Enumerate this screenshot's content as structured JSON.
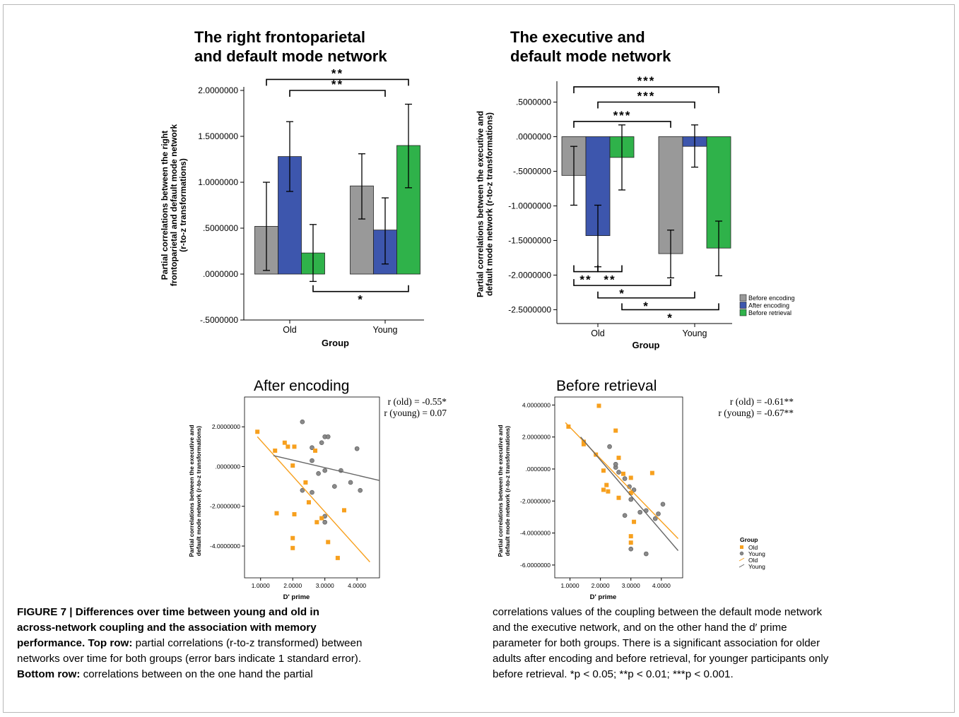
{
  "colors": {
    "before_encoding": "#999999",
    "after_encoding": "#3d56ad",
    "before_retrieval": "#2fb24a",
    "old": "#f7a01e",
    "young": "#8a8a8a",
    "old_line": "#f7a01e",
    "young_line": "#666666"
  },
  "chart_data": [
    {
      "id": "c1",
      "type": "bar",
      "title_lines": [
        "The right frontoparietal",
        "and default mode network"
      ],
      "xlabel": "Group",
      "ylabel_lines": [
        "Partial correlations between the right",
        "frontoparietal and default mode network",
        "(r-to-z transformations)"
      ],
      "categories": [
        "Old",
        "Young"
      ],
      "ylim": [
        -0.5,
        2.0
      ],
      "yticks": [
        -0.5,
        0.0,
        0.5,
        1.0,
        1.5,
        2.0
      ],
      "ytick_labels": [
        "-.5000000",
        ".0000000",
        ".5000000",
        "1.0000000",
        "1.5000000",
        "2.0000000"
      ],
      "series": [
        {
          "key": "before_encoding",
          "values": [
            0.52,
            0.96
          ],
          "err_low": [
            0.04,
            0.6
          ],
          "err_high": [
            1.0,
            1.31
          ]
        },
        {
          "key": "after_encoding",
          "values": [
            1.28,
            0.48
          ],
          "err_low": [
            0.9,
            0.11
          ],
          "err_high": [
            1.66,
            0.83
          ]
        },
        {
          "key": "before_retrieval",
          "values": [
            0.23,
            1.4
          ],
          "err_low": [
            -0.08,
            0.94
          ],
          "err_high": [
            0.54,
            1.85
          ]
        }
      ],
      "significance": [
        {
          "label": "**",
          "from": [
            "Old",
            0
          ],
          "to": [
            "Young",
            2
          ],
          "level": 2.12,
          "pos": "above"
        },
        {
          "label": "**",
          "from": [
            "Old",
            1
          ],
          "to": [
            "Young",
            1
          ],
          "level": 2.0,
          "pos": "above"
        },
        {
          "label": "*",
          "from": [
            "Old",
            2
          ],
          "to": [
            "Young",
            2
          ],
          "level": -0.19,
          "pos": "below"
        }
      ]
    },
    {
      "id": "c2",
      "type": "bar",
      "title_lines": [
        "The executive and",
        "default mode network"
      ],
      "xlabel": "Group",
      "ylabel_lines": [
        "Partial correlations between the executive and",
        "default mode network (r-to-z transformations)"
      ],
      "categories": [
        "Old",
        "Young"
      ],
      "ylim": [
        -2.7,
        0.75
      ],
      "yticks": [
        -2.5,
        -2.0,
        -1.5,
        -1.0,
        -0.5,
        0.0,
        0.5
      ],
      "ytick_labels": [
        "-2.5000000",
        "-2.0000000",
        "-1.5000000",
        "-1.0000000",
        "-.5000000",
        ".0000000",
        ".5000000"
      ],
      "legend": [
        "Before encoding",
        "After encoding",
        "Before retrieval"
      ],
      "legend_position": "right",
      "series": [
        {
          "key": "before_encoding",
          "values": [
            -0.56,
            -1.69
          ],
          "err_low": [
            -0.99,
            -2.04
          ],
          "err_high": [
            -0.14,
            -1.35
          ]
        },
        {
          "key": "after_encoding",
          "values": [
            -1.43,
            -0.14
          ],
          "err_low": [
            -1.88,
            -0.44
          ],
          "err_high": [
            -0.99,
            0.17
          ]
        },
        {
          "key": "before_retrieval",
          "values": [
            -0.3,
            -1.61
          ],
          "err_low": [
            -0.77,
            -2.01
          ],
          "err_high": [
            0.17,
            -1.22
          ]
        }
      ],
      "significance": [
        {
          "label": "***",
          "from": [
            "Old",
            0
          ],
          "to": [
            "Young",
            2
          ],
          "level": 0.72,
          "pos": "above"
        },
        {
          "label": "***",
          "from": [
            "Old",
            1
          ],
          "to": [
            "Young",
            1
          ],
          "level": 0.5,
          "pos": "above"
        },
        {
          "label": "***",
          "from": [
            "Old",
            0
          ],
          "to": [
            "Young",
            0
          ],
          "level": 0.22,
          "pos": "above"
        },
        {
          "label": "**",
          "from": [
            "Old",
            0
          ],
          "to": [
            "Old",
            1
          ],
          "level": -1.95,
          "pos": "below"
        },
        {
          "label": "**",
          "from": [
            "Old",
            1
          ],
          "to": [
            "Old",
            2
          ],
          "level": -1.95,
          "pos": "below"
        },
        {
          "label": "*",
          "from": [
            "Old",
            0
          ],
          "to": [
            "Young",
            0
          ],
          "level": -2.15,
          "pos": "below"
        },
        {
          "label": "*",
          "from": [
            "Old",
            1
          ],
          "to": [
            "Young",
            1
          ],
          "level": -2.33,
          "pos": "below"
        },
        {
          "label": "*",
          "from": [
            "Old",
            2
          ],
          "to": [
            "Young",
            2
          ],
          "level": -2.5,
          "pos": "below"
        }
      ]
    },
    {
      "id": "c3",
      "type": "scatter",
      "title": "After encoding",
      "xlabel": "D' prime",
      "ylabel_lines": [
        "Partial correlations between the executive and",
        "default mode network (r-to-z transformations)"
      ],
      "xlim": [
        0.5,
        4.7
      ],
      "ylim": [
        -5.6,
        3.5
      ],
      "xticks": [
        1.0,
        2.0,
        3.0,
        4.0
      ],
      "xtick_labels": [
        "1.0000",
        "2.0000",
        "3.0000",
        "4.0000"
      ],
      "yticks": [
        -4.0,
        -2.0,
        0.0,
        2.0
      ],
      "ytick_labels": [
        "-4.0000000",
        "-2.0000000",
        ".0000000",
        "2.0000000"
      ],
      "annotations": [
        "r (old) = -0.55*",
        "r (young) = 0.07"
      ],
      "old_points": [
        [
          0.9,
          1.75
        ],
        [
          1.45,
          0.8
        ],
        [
          1.75,
          1.2
        ],
        [
          1.85,
          1.0
        ],
        [
          2.05,
          1.0
        ],
        [
          2.7,
          0.8
        ],
        [
          2.0,
          0.05
        ],
        [
          2.4,
          -0.8
        ],
        [
          2.5,
          -1.8
        ],
        [
          2.75,
          -2.8
        ],
        [
          2.9,
          -2.6
        ],
        [
          3.4,
          -4.6
        ],
        [
          3.6,
          -2.2
        ],
        [
          1.5,
          -2.35
        ],
        [
          2.05,
          -2.4
        ],
        [
          2.0,
          -3.6
        ],
        [
          2.0,
          -4.1
        ],
        [
          3.1,
          -3.8
        ]
      ],
      "young_points": [
        [
          2.3,
          2.25
        ],
        [
          2.6,
          0.95
        ],
        [
          2.9,
          1.2
        ],
        [
          3.0,
          1.5
        ],
        [
          3.1,
          1.5
        ],
        [
          4.0,
          0.9
        ],
        [
          2.6,
          0.3
        ],
        [
          3.0,
          -0.2
        ],
        [
          2.8,
          -0.35
        ],
        [
          3.5,
          -0.2
        ],
        [
          2.3,
          -1.2
        ],
        [
          2.6,
          -1.3
        ],
        [
          3.3,
          -1.0
        ],
        [
          3.8,
          -0.8
        ],
        [
          4.1,
          -1.2
        ],
        [
          3.0,
          -2.5
        ],
        [
          3.0,
          -2.8
        ]
      ],
      "old_fit": [
        [
          0.9,
          1.5
        ],
        [
          4.4,
          -4.8
        ]
      ],
      "young_fit": [
        [
          1.4,
          0.55
        ],
        [
          4.7,
          -0.7
        ]
      ]
    },
    {
      "id": "c4",
      "type": "scatter",
      "title": "Before retrieval",
      "xlabel": "D' prime",
      "ylabel_lines": [
        "Partial correlations between the executive and",
        "default mode network (r-to-z transformations)"
      ],
      "xlim": [
        0.5,
        4.7
      ],
      "ylim": [
        -6.8,
        4.5
      ],
      "xticks": [
        1.0,
        2.0,
        3.0,
        4.0
      ],
      "xtick_labels": [
        "1.0000",
        "2.0000",
        "3.0000",
        "4.0000"
      ],
      "yticks": [
        -6.0,
        -4.0,
        -2.0,
        0.0,
        2.0,
        4.0
      ],
      "ytick_labels": [
        "-6.0000000",
        "-4.0000000",
        "-2.0000000",
        ".0000000",
        "2.0000000",
        "4.0000000"
      ],
      "annotations": [
        "r (old) = -0.61**",
        "r (young) = -0.67**"
      ],
      "legend_title": "Group",
      "legend": [
        "Old",
        "Young",
        "Old",
        "Young"
      ],
      "legend_position": "right",
      "old_points": [
        [
          0.95,
          2.65
        ],
        [
          1.45,
          1.7
        ],
        [
          1.45,
          1.55
        ],
        [
          1.85,
          0.9
        ],
        [
          1.95,
          3.95
        ],
        [
          2.5,
          2.4
        ],
        [
          2.1,
          -0.1
        ],
        [
          2.1,
          -1.3
        ],
        [
          2.2,
          -1.0
        ],
        [
          2.25,
          -1.4
        ],
        [
          2.6,
          0.7
        ],
        [
          2.75,
          -0.3
        ],
        [
          3.0,
          -0.55
        ],
        [
          3.7,
          -0.25
        ],
        [
          3.0,
          -1.5
        ],
        [
          2.6,
          -1.8
        ],
        [
          3.1,
          -3.3
        ],
        [
          3.0,
          -4.2
        ],
        [
          3.0,
          -4.6
        ]
      ],
      "young_points": [
        [
          2.3,
          1.4
        ],
        [
          2.5,
          0.1
        ],
        [
          2.5,
          0.3
        ],
        [
          2.6,
          -0.2
        ],
        [
          2.8,
          -0.6
        ],
        [
          2.95,
          -1.1
        ],
        [
          3.1,
          -1.3
        ],
        [
          3.0,
          -1.9
        ],
        [
          2.8,
          -2.9
        ],
        [
          3.3,
          -2.7
        ],
        [
          3.5,
          -2.6
        ],
        [
          3.8,
          -3.1
        ],
        [
          4.05,
          -2.2
        ],
        [
          3.9,
          -2.8
        ],
        [
          3.0,
          -5.0
        ],
        [
          3.5,
          -5.3
        ]
      ],
      "old_fit": [
        [
          0.85,
          2.9
        ],
        [
          4.55,
          -4.35
        ]
      ],
      "young_fit": [
        [
          1.35,
          2.0
        ],
        [
          4.55,
          -5.1
        ]
      ]
    }
  ],
  "caption": {
    "left": {
      "title_line1": "FIGURE 7 | Differences over time between young and old in",
      "title_line2": "across-network coupling and the association with memory",
      "title_line3_bold": "performance. Top row:",
      "line3_rest": " partial correlations (r-to-z transformed) between",
      "line4": "networks over time for both groups (error bars indicate 1 standard error).",
      "line5_bold": "Bottom row:",
      "line5_rest": " correlations between on the one hand the partial"
    },
    "right": {
      "line1": "correlations values of the coupling between the default mode network",
      "line2": "and the executive network, and on the other hand the d′ prime",
      "line3": "parameter for both groups. There is a significant association for older",
      "line4": "adults after encoding and before retrieval, for younger participants only",
      "line5": "before retrieval. *p < 0.05; **p < 0.01; ***p < 0.001."
    }
  }
}
